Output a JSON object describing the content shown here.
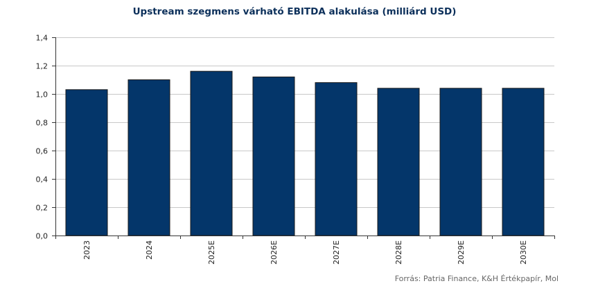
{
  "chart_data": {
    "type": "bar",
    "title": "Upstream szegmens várható EBITDA alakulása (milliárd USD)",
    "categories": [
      "2023",
      "2024",
      "2025E",
      "2026E",
      "2027E",
      "2028E",
      "2029E",
      "2030E"
    ],
    "values": [
      1.03,
      1.1,
      1.16,
      1.12,
      1.08,
      1.04,
      1.04,
      1.04
    ],
    "xlabel": "",
    "ylabel": "",
    "ylim": [
      0,
      1.4
    ],
    "yticks": [
      "0,0",
      "0,2",
      "0,4",
      "0,6",
      "0,8",
      "1,0",
      "1,2",
      "1,4"
    ],
    "bar_color": "#04366a",
    "grid": true,
    "legend": "none",
    "source": "Forrás: Patria Finance, K&H Értékpapír, Mol"
  }
}
